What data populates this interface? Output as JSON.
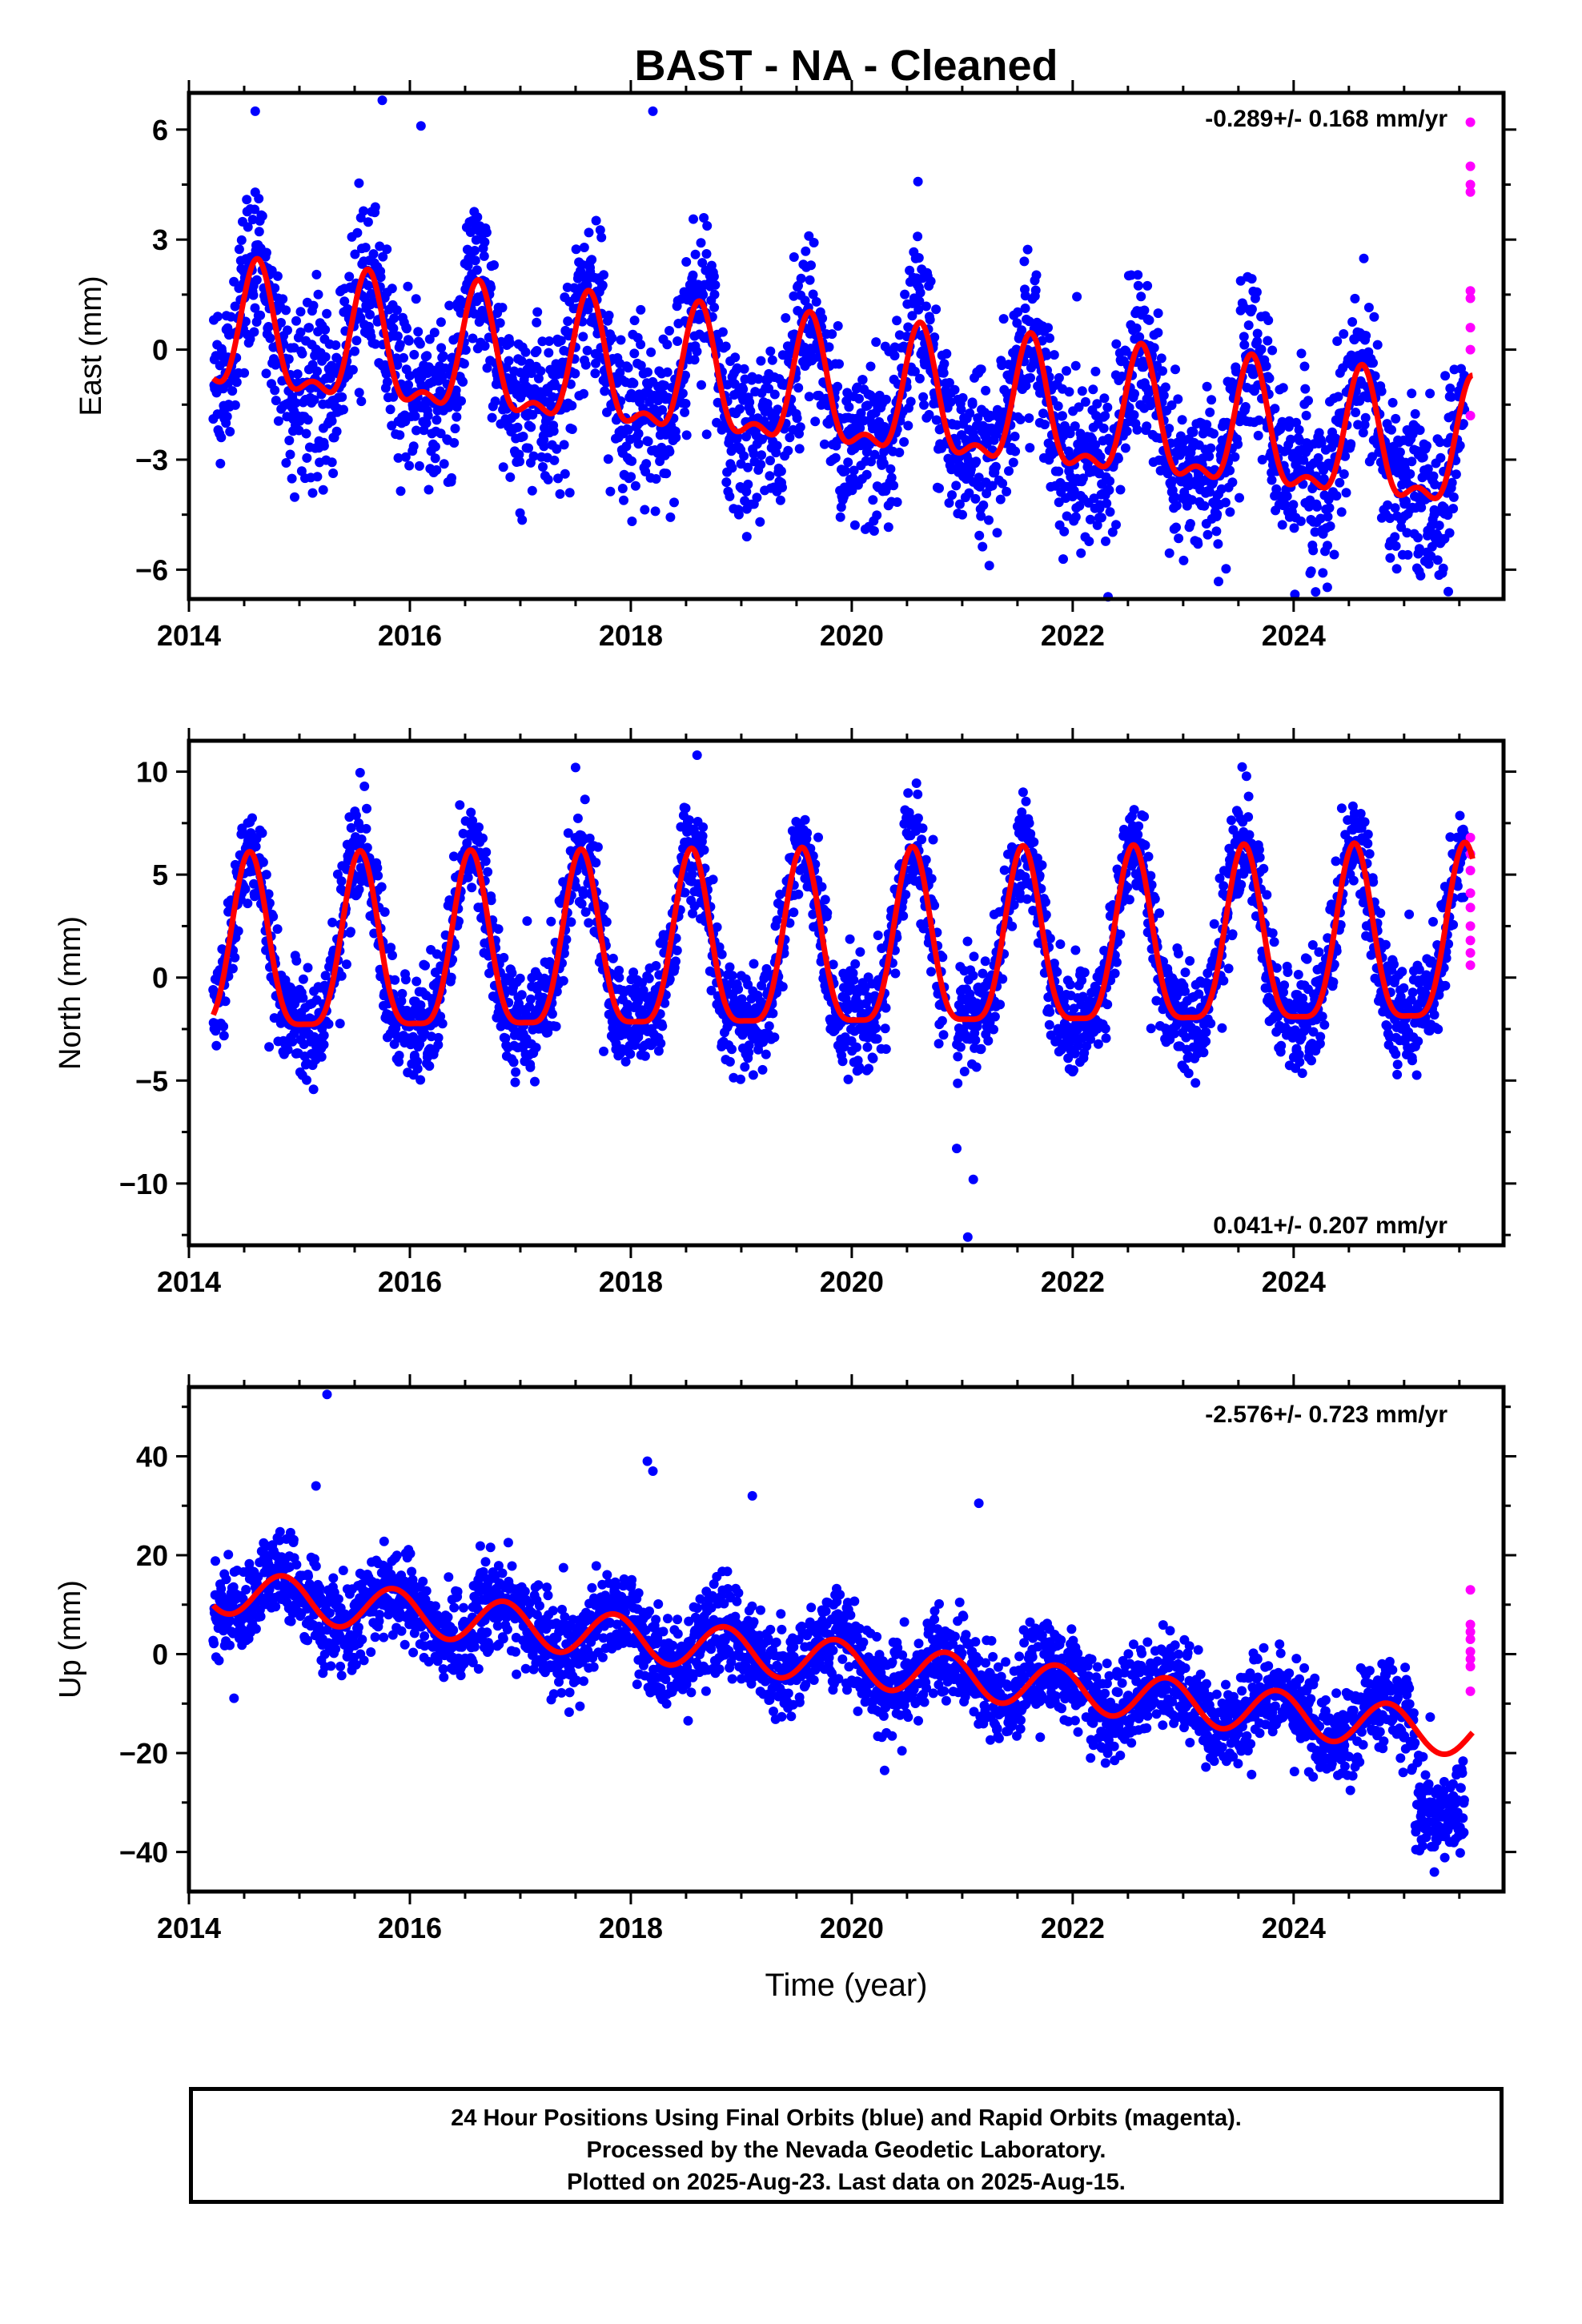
{
  "page": {
    "title": "BAST  - NA - Cleaned",
    "xaxis_label": "Time (year)"
  },
  "footer": {
    "line1": "24 Hour Positions Using Final Orbits (blue) and Rapid Orbits (magenta).",
    "line2": "Processed by the Nevada Geodetic Laboratory.",
    "line3": "Plotted on 2025-Aug-23. Last data on 2025-Aug-15."
  },
  "colors": {
    "final_orbits": "#0000ff",
    "rapid_orbits": "#ff00ff",
    "model_fit": "#ff0000",
    "frame": "#000000"
  },
  "chart_data": [
    {
      "type": "scatter",
      "title": "BAST  - NA - Cleaned",
      "ylabel": "East (mm)",
      "xlabel": "",
      "rate_label": "-0.289+/- 0.168 mm/yr",
      "rate_position": "top-right",
      "xlim": [
        2014.0,
        2025.9
      ],
      "ylim": [
        -6.8,
        7.0
      ],
      "xticks": [
        2014,
        2016,
        2018,
        2020,
        2022,
        2024
      ],
      "yticks": [
        -6,
        -3,
        0,
        3,
        6
      ],
      "fit": {
        "offset": 0.3,
        "rate": -0.289,
        "t0": 2014.2,
        "annual_amp": 1.6,
        "annual_phase": 2014.62,
        "semi_amp": 0.7,
        "semi_phase": 2014.62
      },
      "scatter": {
        "n": 3000,
        "sigma": 1.05,
        "outliers": [
          [
            2014.6,
            6.5
          ],
          [
            2015.75,
            6.8
          ],
          [
            2016.1,
            6.1
          ],
          [
            2018.2,
            6.5
          ],
          [
            2019.05,
            -5.1
          ],
          [
            2025.4,
            -6.6
          ],
          [
            2024.15,
            -6.1
          ]
        ]
      },
      "rapid": {
        "x": [
          2025.6,
          2025.6,
          2025.6,
          2025.6,
          2025.6,
          2025.6,
          2025.6,
          2025.6,
          2025.6
        ],
        "y": [
          6.2,
          5.0,
          4.5,
          4.3,
          1.6,
          1.4,
          0.6,
          0.0,
          -1.8
        ]
      },
      "grid": false
    },
    {
      "type": "scatter",
      "ylabel": "North (mm)",
      "xlabel": "",
      "rate_label": "0.041+/- 0.207 mm/yr",
      "rate_position": "bottom-right",
      "xlim": [
        2014.0,
        2025.9
      ],
      "ylim": [
        -13.0,
        11.5
      ],
      "xticks": [
        2014,
        2016,
        2018,
        2020,
        2022,
        2024
      ],
      "yticks": [
        -10,
        -5,
        0,
        5,
        10
      ],
      "fit": {
        "offset": 0.8,
        "rate": 0.041,
        "t0": 2014.2,
        "annual_amp": 4.2,
        "annual_phase": 2014.55,
        "semi_amp": 1.1,
        "semi_phase": 2014.55
      },
      "scatter": {
        "n": 3000,
        "sigma": 1.2,
        "outliers": [
          [
            2017.5,
            10.2
          ],
          [
            2018.6,
            10.8
          ],
          [
            2021.05,
            -12.6
          ],
          [
            2021.1,
            -9.8
          ],
          [
            2020.95,
            -8.3
          ]
        ]
      },
      "rapid": {
        "x": [
          2025.6,
          2025.6,
          2025.6,
          2025.6,
          2025.6,
          2025.6,
          2025.6,
          2025.6,
          2025.6
        ],
        "y": [
          6.8,
          6.0,
          5.2,
          4.1,
          3.4,
          2.5,
          1.8,
          1.2,
          0.6
        ]
      },
      "grid": false
    },
    {
      "type": "scatter",
      "ylabel": "Up (mm)",
      "xlabel": "Time (year)",
      "rate_label": "-2.576+/- 0.723 mm/yr",
      "rate_position": "top-right",
      "xlim": [
        2014.0,
        2025.9
      ],
      "ylim": [
        -48.0,
        54.0
      ],
      "xticks": [
        2014,
        2016,
        2018,
        2020,
        2022,
        2024
      ],
      "yticks": [
        -40,
        -20,
        0,
        20,
        40
      ],
      "fit": {
        "offset": 13.0,
        "rate": -2.576,
        "t0": 2014.2,
        "annual_amp": 4.5,
        "annual_phase": 2014.85,
        "semi_amp": 0.0,
        "semi_phase": 2014.85
      },
      "scatter": {
        "n": 3000,
        "sigma": 4.3,
        "outliers": [
          [
            2015.25,
            52.5
          ],
          [
            2018.15,
            39.0
          ],
          [
            2018.2,
            37.0
          ],
          [
            2019.1,
            32.0
          ],
          [
            2021.15,
            30.5
          ],
          [
            2015.15,
            34.0
          ]
        ]
      },
      "late_drop": {
        "from": 2025.1,
        "to": 2025.6,
        "center": -32,
        "sigma": 4.5
      },
      "rapid": {
        "x": [
          2025.6,
          2025.6,
          2025.6,
          2025.6,
          2025.6,
          2025.6,
          2025.6,
          2025.6
        ],
        "y": [
          13.0,
          6.0,
          4.5,
          3.0,
          0.5,
          -1.0,
          -2.5,
          -7.5
        ]
      },
      "grid": false
    }
  ]
}
